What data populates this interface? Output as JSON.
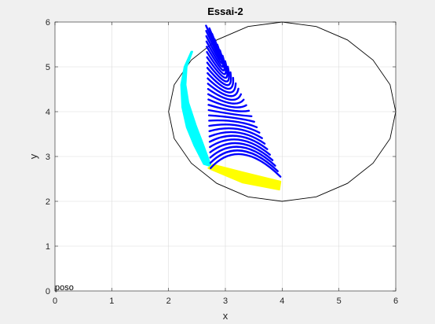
{
  "chart_data": {
    "type": "line",
    "title": "Essai-2",
    "xlabel": "x",
    "ylabel": "y",
    "xlim": [
      0,
      6
    ],
    "ylim": [
      0,
      6
    ],
    "xticks": [
      "0",
      "1",
      "2",
      "3",
      "4",
      "5",
      "6"
    ],
    "yticks": [
      "0",
      "1",
      "2",
      "3",
      "4",
      "5",
      "6"
    ],
    "grid": true,
    "annotations": [
      {
        "text": "poso",
        "x": 0.0,
        "y": 0.0
      }
    ],
    "series": [
      {
        "kind": "polygon-outline",
        "color": "#000000",
        "points": [
          [
            4.0,
            6.0
          ],
          [
            4.6,
            5.9
          ],
          [
            5.15,
            5.6
          ],
          [
            5.6,
            5.15
          ],
          [
            5.9,
            4.6
          ],
          [
            6.0,
            4.0
          ],
          [
            5.9,
            3.4
          ],
          [
            5.6,
            2.85
          ],
          [
            5.15,
            2.4
          ],
          [
            4.6,
            2.1
          ],
          [
            4.0,
            2.0
          ],
          [
            3.4,
            2.1
          ],
          [
            2.85,
            2.4
          ],
          [
            2.4,
            2.85
          ],
          [
            2.1,
            3.4
          ],
          [
            2.0,
            4.0
          ],
          [
            2.1,
            4.6
          ],
          [
            2.4,
            5.15
          ],
          [
            2.85,
            5.6
          ],
          [
            3.4,
            5.9
          ],
          [
            4.0,
            6.0
          ]
        ]
      },
      {
        "kind": "filled-band",
        "color": "#00ffff",
        "points": [
          [
            2.42,
            5.34
          ],
          [
            2.32,
            5.0
          ],
          [
            2.3,
            4.6
          ],
          [
            2.35,
            4.2
          ],
          [
            2.48,
            3.7
          ],
          [
            2.6,
            3.3
          ],
          [
            2.75,
            2.78
          ],
          [
            2.62,
            2.83
          ],
          [
            2.45,
            3.25
          ],
          [
            2.32,
            3.65
          ],
          [
            2.24,
            4.1
          ],
          [
            2.22,
            4.6
          ],
          [
            2.28,
            5.0
          ],
          [
            2.4,
            5.34
          ]
        ]
      },
      {
        "kind": "filled-band",
        "color": "#ffff00",
        "points": [
          [
            2.78,
            2.82
          ],
          [
            3.3,
            2.65
          ],
          [
            3.97,
            2.44
          ],
          [
            3.95,
            2.26
          ],
          [
            3.3,
            2.42
          ],
          [
            2.7,
            2.74
          ]
        ]
      },
      {
        "kind": "curve-family",
        "color": "#0000ff",
        "count": 28,
        "curve_start": [
          [
            2.66,
            5.92
          ],
          [
            2.74,
            2.74
          ]
        ],
        "curve_control": [
          [
            3.12,
            4.6
          ],
          [
            3.25,
            3.45
          ]
        ],
        "curve_end": [
          [
            2.72,
            5.86
          ],
          [
            3.97,
            2.55
          ]
        ]
      }
    ]
  }
}
